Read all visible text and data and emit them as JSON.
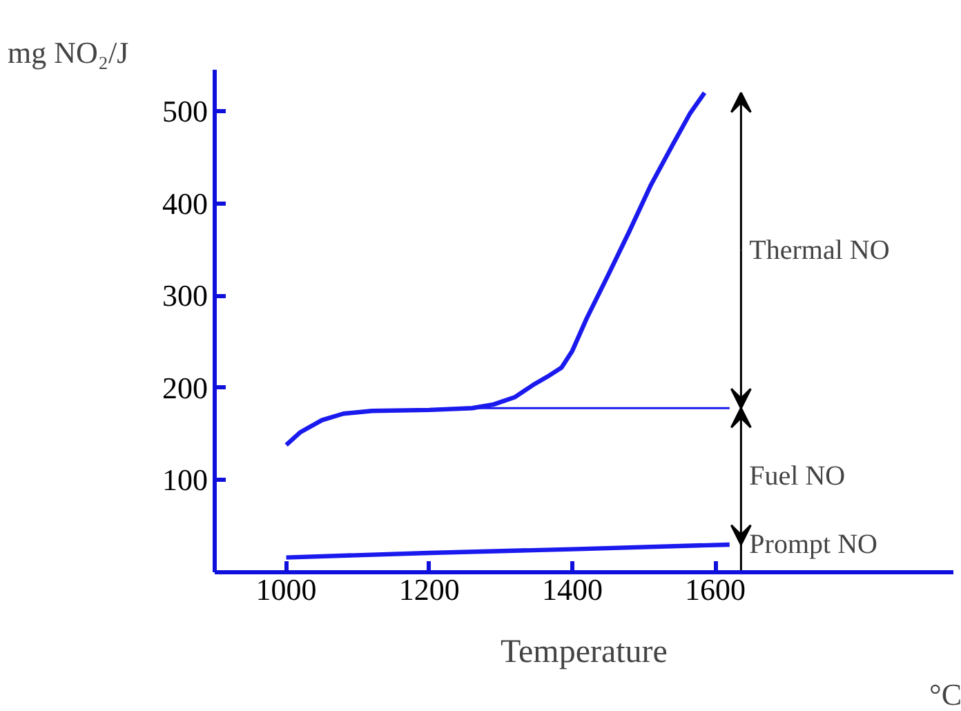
{
  "chart_data": {
    "type": "line",
    "xlabel": "Temperature",
    "ylabel": "mg NO₂/J",
    "xlim": [
      900,
      1933
    ],
    "ylim": [
      0,
      545
    ],
    "xticks": [
      1000,
      1200,
      1400,
      1600
    ],
    "yticks": [
      100,
      200,
      300,
      400,
      500
    ],
    "grid": false,
    "marker": "none",
    "line_style": "solid",
    "series": [
      {
        "color": "#1a1aee",
        "x": [
          1000,
          1020,
          1050,
          1080,
          1120,
          1200,
          1260,
          1290,
          1320,
          1345,
          1365,
          1385,
          1400,
          1420,
          1450,
          1480,
          1510,
          1540,
          1565,
          1585
        ],
        "values": [
          138,
          152,
          165,
          172,
          175,
          176,
          178,
          182,
          190,
          203,
          212,
          222,
          240,
          275,
          322,
          370,
          420,
          463,
          498,
          520
        ]
      },
      {
        "color": "#1a1aee",
        "x": [
          1260,
          1620
        ],
        "values": [
          178,
          178
        ]
      },
      {
        "color": "#1a1aee",
        "x": [
          1000,
          1200,
          1400,
          1620
        ],
        "values": [
          16,
          21,
          25,
          30
        ]
      }
    ],
    "annotations": [
      "Thermal NO",
      "Fuel NO",
      "Prompt NO",
      "°C"
    ]
  }
}
